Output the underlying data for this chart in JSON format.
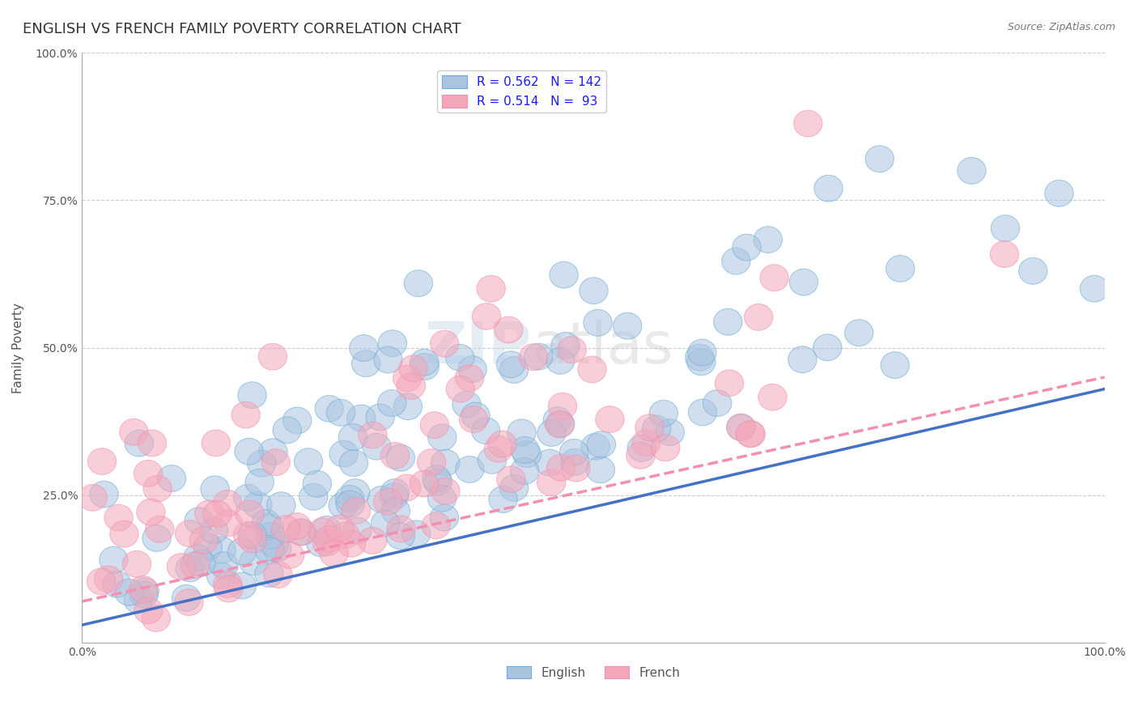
{
  "title": "ENGLISH VS FRENCH FAMILY POVERTY CORRELATION CHART",
  "source_text": "Source: ZipAtlas.com",
  "xlabel": "",
  "ylabel": "Family Poverty",
  "xlim": [
    0.0,
    1.0
  ],
  "ylim": [
    0.0,
    1.0
  ],
  "x_tick_labels": [
    "0.0%",
    "100.0%"
  ],
  "y_tick_labels": [
    "25.0%",
    "50.0%",
    "75.0%",
    "100.0%"
  ],
  "y_tick_positions": [
    0.25,
    0.5,
    0.75,
    1.0
  ],
  "legend_entries": [
    {
      "label": "R = 0.562   N = 142",
      "color": "#aac4e0"
    },
    {
      "label": "R = 0.514   N =  93",
      "color": "#f4a7b9"
    }
  ],
  "english_color": "#6baed6",
  "english_fill": "#aac4e0",
  "french_color": "#f48fb1",
  "french_fill": "#f4a7b9",
  "english_R": 0.562,
  "english_N": 142,
  "french_R": 0.514,
  "french_N": 93,
  "background_color": "#ffffff",
  "grid_color": "#cccccc",
  "title_color": "#333333",
  "axis_label_color": "#555555",
  "title_fontsize": 13,
  "label_fontsize": 11,
  "tick_fontsize": 10,
  "source_fontsize": 9,
  "watermark_text": "ZIPatlas",
  "english_line_color": "#4472c4",
  "french_line_color": "#f48fb1",
  "english_line_slope": 0.4,
  "english_line_intercept": 0.03,
  "french_line_slope": 0.38,
  "french_line_intercept": 0.07
}
